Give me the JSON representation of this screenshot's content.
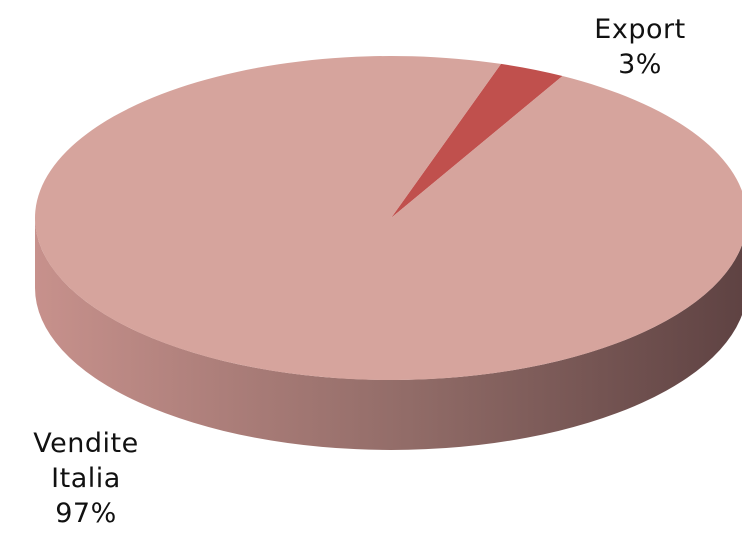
{
  "chart_data": {
    "type": "pie",
    "style": "3d",
    "categories": [
      "Export",
      "Vendite Italia"
    ],
    "values": [
      3,
      97
    ],
    "labels": [
      {
        "lines": [
          "Export",
          "3%"
        ]
      },
      {
        "lines": [
          "Vendite",
          "Italia",
          "97%"
        ]
      }
    ],
    "colors": {
      "Export": "#c0504d",
      "Export_side": "#8c3431",
      "Vendite Italia": "#d6a49d",
      "Vendite Italia_side_light": "#c7918c",
      "Vendite Italia_side_dark": "#5e4242"
    },
    "title": "",
    "legend": "none"
  }
}
